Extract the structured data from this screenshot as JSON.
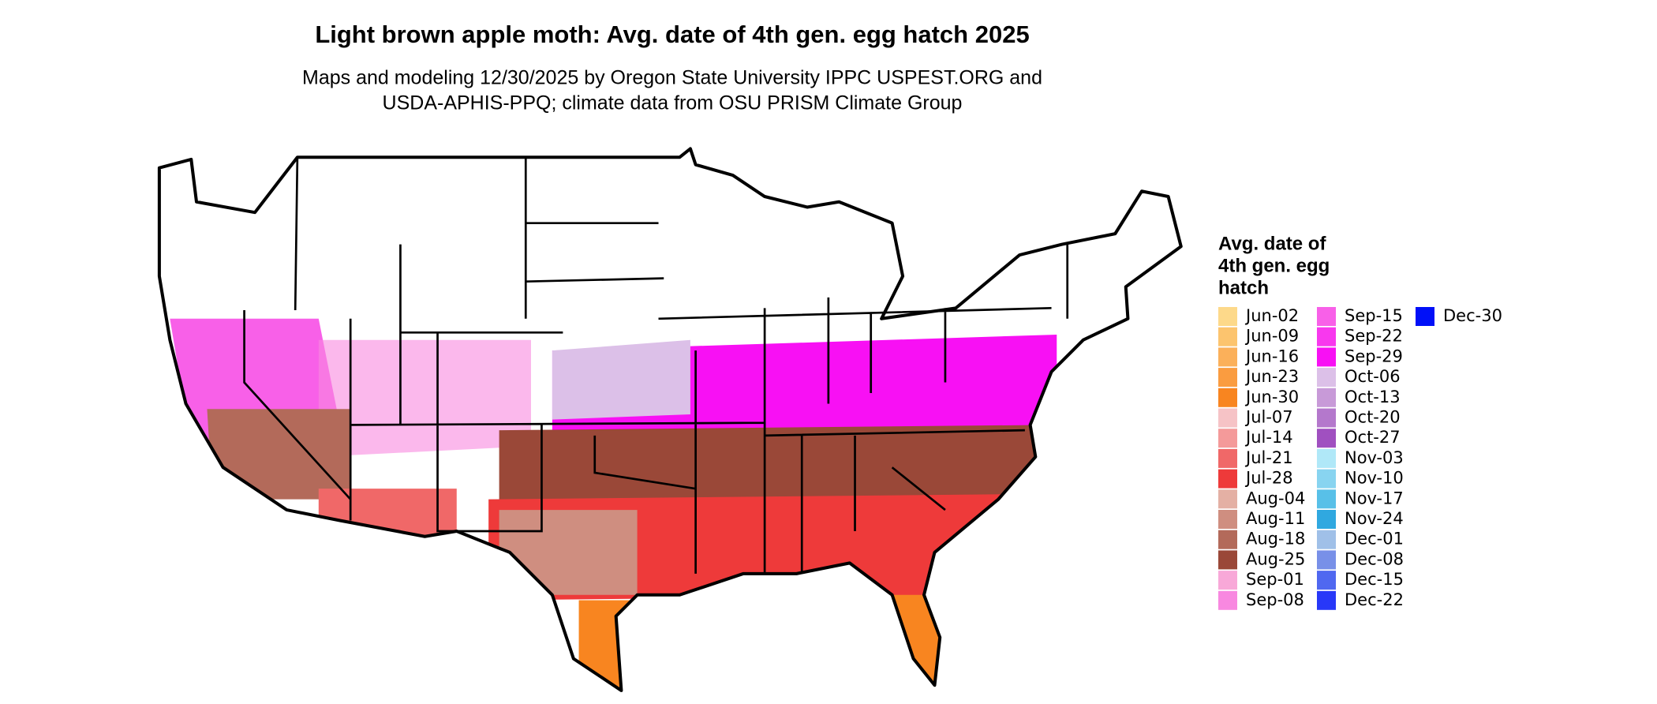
{
  "title": "Light brown apple moth: Avg. date of 4th gen. egg hatch 2025",
  "subtitle_lines": [
    "Maps and modeling 12/30/2025 by Oregon State University IPPC USPEST.ORG and",
    "USDA-APHIS-PPQ; climate data from OSU PRISM Climate Group"
  ],
  "legend": {
    "title_lines": [
      "Avg. date of",
      "4th gen. egg",
      "hatch"
    ],
    "items": [
      {
        "label": "Jun-02",
        "color": "#fdd98a"
      },
      {
        "label": "Jun-09",
        "color": "#fcc46e"
      },
      {
        "label": "Jun-16",
        "color": "#fbb05a"
      },
      {
        "label": "Jun-23",
        "color": "#fa9c40"
      },
      {
        "label": "Jun-30",
        "color": "#f88520"
      },
      {
        "label": "Jul-07",
        "color": "#f6c3c6"
      },
      {
        "label": "Jul-14",
        "color": "#f49a9a"
      },
      {
        "label": "Jul-21",
        "color": "#f06868"
      },
      {
        "label": "Jul-28",
        "color": "#ee3a3a"
      },
      {
        "label": "Aug-04",
        "color": "#e4b0a4"
      },
      {
        "label": "Aug-11",
        "color": "#cf8e80"
      },
      {
        "label": "Aug-18",
        "color": "#b36a5a"
      },
      {
        "label": "Aug-25",
        "color": "#9a4838"
      },
      {
        "label": "Sep-01",
        "color": "#f8a8d8"
      },
      {
        "label": "Sep-08",
        "color": "#f888e0"
      },
      {
        "label": "Sep-15",
        "color": "#f860e8"
      },
      {
        "label": "Sep-22",
        "color": "#f838ee"
      },
      {
        "label": "Sep-29",
        "color": "#f810f4"
      },
      {
        "label": "Oct-06",
        "color": "#dcc0e8"
      },
      {
        "label": "Oct-13",
        "color": "#c89ad8"
      },
      {
        "label": "Oct-20",
        "color": "#b478cc"
      },
      {
        "label": "Oct-27",
        "color": "#a050c0"
      },
      {
        "label": "Nov-03",
        "color": "#b0e8f8"
      },
      {
        "label": "Nov-10",
        "color": "#88d4f0"
      },
      {
        "label": "Nov-17",
        "color": "#58c0e8"
      },
      {
        "label": "Nov-24",
        "color": "#30a8e0"
      },
      {
        "label": "Dec-01",
        "color": "#a0c0e8"
      },
      {
        "label": "Dec-08",
        "color": "#7890e8"
      },
      {
        "label": "Dec-15",
        "color": "#5068f0"
      },
      {
        "label": "Dec-22",
        "color": "#2838f8"
      },
      {
        "label": "Dec-30",
        "color": "#0010f8"
      }
    ]
  }
}
